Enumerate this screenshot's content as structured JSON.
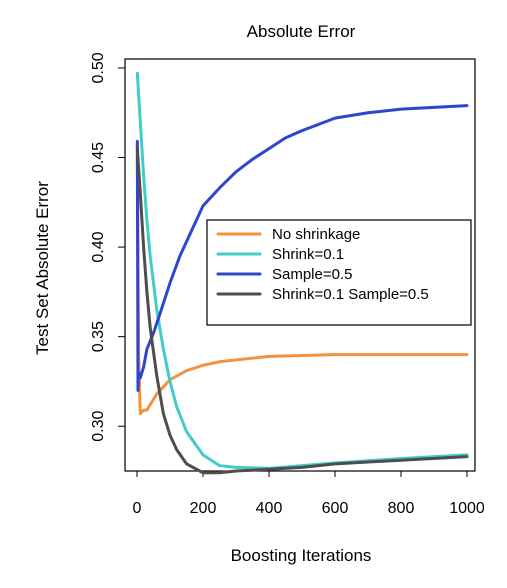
{
  "chart_data": {
    "type": "line",
    "title": "Absolute Error",
    "xlabel": "Boosting Iterations",
    "ylabel": "Test Set Absolute Error",
    "xlim": [
      0,
      1000
    ],
    "ylim": [
      0.275,
      0.505
    ],
    "xticks": [
      0,
      200,
      400,
      600,
      800,
      1000
    ],
    "yticks": [
      0.3,
      0.35,
      0.4,
      0.45,
      0.5
    ],
    "xtick_labels": [
      "0",
      "200",
      "400",
      "600",
      "800",
      "1000"
    ],
    "ytick_labels": [
      "0.30",
      "0.35",
      "0.40",
      "0.45",
      "0.50"
    ],
    "grid": false,
    "legend": {
      "position": "center-right"
    },
    "series": [
      {
        "name": "No shrinkage",
        "color": "#f39241",
        "points": [
          [
            1,
            0.457
          ],
          [
            5,
            0.34
          ],
          [
            10,
            0.307
          ],
          [
            20,
            0.309
          ],
          [
            30,
            0.309
          ],
          [
            40,
            0.312
          ],
          [
            60,
            0.318
          ],
          [
            80,
            0.322
          ],
          [
            100,
            0.326
          ],
          [
            150,
            0.331
          ],
          [
            200,
            0.334
          ],
          [
            250,
            0.336
          ],
          [
            300,
            0.337
          ],
          [
            400,
            0.339
          ],
          [
            500,
            0.3395
          ],
          [
            600,
            0.34
          ],
          [
            800,
            0.34
          ],
          [
            1000,
            0.34
          ]
        ]
      },
      {
        "name": "Shrink=0.1",
        "color": "#3fcec7",
        "points": [
          [
            1,
            0.497
          ],
          [
            10,
            0.47
          ],
          [
            20,
            0.44
          ],
          [
            30,
            0.415
          ],
          [
            40,
            0.395
          ],
          [
            60,
            0.365
          ],
          [
            80,
            0.343
          ],
          [
            100,
            0.325
          ],
          [
            120,
            0.311
          ],
          [
            150,
            0.297
          ],
          [
            200,
            0.284
          ],
          [
            250,
            0.278
          ],
          [
            300,
            0.277
          ],
          [
            400,
            0.2765
          ],
          [
            500,
            0.278
          ],
          [
            600,
            0.2795
          ],
          [
            800,
            0.282
          ],
          [
            1000,
            0.284
          ]
        ]
      },
      {
        "name": "Sample=0.5",
        "color": "#2f45cf",
        "points": [
          [
            1,
            0.459
          ],
          [
            3,
            0.32
          ],
          [
            5,
            0.33
          ],
          [
            10,
            0.327
          ],
          [
            20,
            0.333
          ],
          [
            30,
            0.343
          ],
          [
            50,
            0.352
          ],
          [
            70,
            0.363
          ],
          [
            100,
            0.38
          ],
          [
            130,
            0.395
          ],
          [
            160,
            0.407
          ],
          [
            200,
            0.423
          ],
          [
            250,
            0.433
          ],
          [
            300,
            0.442
          ],
          [
            350,
            0.449
          ],
          [
            400,
            0.455
          ],
          [
            450,
            0.461
          ],
          [
            500,
            0.465
          ],
          [
            600,
            0.472
          ],
          [
            700,
            0.475
          ],
          [
            800,
            0.477
          ],
          [
            900,
            0.478
          ],
          [
            1000,
            0.479
          ]
        ]
      },
      {
        "name": "Shrink=0.1 Sample=0.5",
        "color": "#4d4d4d",
        "points": [
          [
            1,
            0.455
          ],
          [
            10,
            0.43
          ],
          [
            20,
            0.4
          ],
          [
            30,
            0.375
          ],
          [
            40,
            0.355
          ],
          [
            60,
            0.328
          ],
          [
            80,
            0.307
          ],
          [
            100,
            0.295
          ],
          [
            120,
            0.287
          ],
          [
            150,
            0.279
          ],
          [
            200,
            0.274
          ],
          [
            250,
            0.274
          ],
          [
            300,
            0.275
          ],
          [
            400,
            0.276
          ],
          [
            500,
            0.277
          ],
          [
            600,
            0.279
          ],
          [
            800,
            0.281
          ],
          [
            1000,
            0.283
          ]
        ]
      }
    ]
  }
}
